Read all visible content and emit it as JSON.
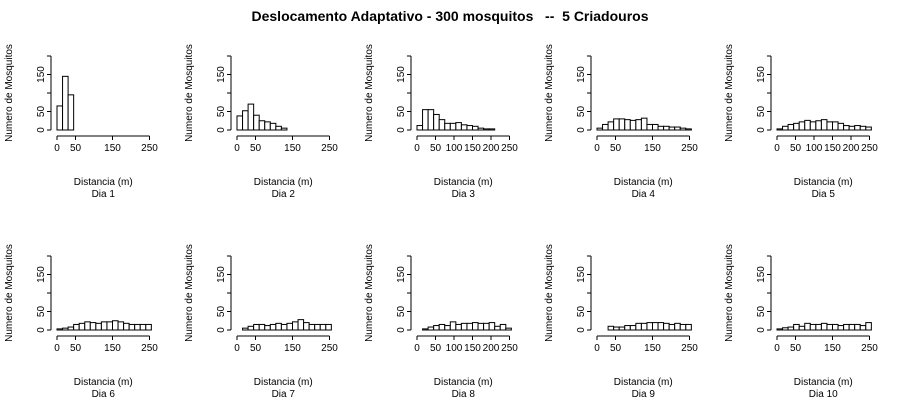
{
  "title": "Deslocamento Adaptativo - 300 mosquitos   --  5 Criadouros",
  "chart_data": [
    {
      "type": "bar",
      "title": "",
      "subtitle": "Dia 1",
      "xlabel": "Distancia (m)",
      "ylabel": "Numero de Mosquitos",
      "xlim": [
        0,
        250
      ],
      "ylim": [
        0,
        200
      ],
      "xticks": [
        0,
        50,
        150,
        250
      ],
      "yticks": [
        0,
        50,
        150
      ],
      "bin_edges": [
        0,
        15,
        30,
        45,
        60,
        75,
        90,
        105,
        120,
        135,
        150,
        165,
        180,
        195,
        210,
        225,
        240,
        255
      ],
      "values": [
        65,
        145,
        95,
        0,
        0,
        0,
        0,
        0,
        0,
        0,
        0,
        0,
        0,
        0,
        0,
        0,
        0
      ]
    },
    {
      "type": "bar",
      "title": "",
      "subtitle": "Dia 2",
      "xlabel": "Distancia (m)",
      "ylabel": "Numero de Mosquitos",
      "xlim": [
        0,
        250
      ],
      "ylim": [
        0,
        200
      ],
      "xticks": [
        0,
        50,
        150,
        250
      ],
      "yticks": [
        0,
        50,
        150
      ],
      "bin_edges": [
        0,
        15,
        30,
        45,
        60,
        75,
        90,
        105,
        120,
        135,
        150,
        165,
        180,
        195,
        210,
        225,
        240,
        255
      ],
      "values": [
        38,
        52,
        70,
        40,
        25,
        22,
        18,
        10,
        5,
        0,
        0,
        0,
        0,
        0,
        0,
        0,
        0
      ]
    },
    {
      "type": "bar",
      "title": "",
      "subtitle": "Dia 3",
      "xlabel": "Distancia (m)",
      "ylabel": "Numero de Mosquitos",
      "xlim": [
        0,
        250
      ],
      "ylim": [
        0,
        200
      ],
      "xticks": [
        0,
        50,
        100,
        150,
        200,
        250
      ],
      "yticks": [
        0,
        50,
        150
      ],
      "bin_edges": [
        0,
        15,
        30,
        45,
        60,
        75,
        90,
        105,
        120,
        135,
        150,
        165,
        180,
        195,
        210,
        225,
        240,
        255
      ],
      "values": [
        12,
        55,
        55,
        42,
        28,
        18,
        18,
        20,
        14,
        12,
        10,
        5,
        3,
        3,
        0,
        0,
        0
      ]
    },
    {
      "type": "bar",
      "title": "",
      "subtitle": "Dia 4",
      "xlabel": "Distancia (m)",
      "ylabel": "Numero de Mosquitos",
      "xlim": [
        0,
        250
      ],
      "ylim": [
        0,
        200
      ],
      "xticks": [
        0,
        50,
        150,
        250
      ],
      "yticks": [
        0,
        50,
        150
      ],
      "bin_edges": [
        0,
        15,
        30,
        45,
        60,
        75,
        90,
        105,
        120,
        135,
        150,
        165,
        180,
        195,
        210,
        225,
        240,
        255
      ],
      "values": [
        5,
        15,
        22,
        30,
        30,
        28,
        26,
        28,
        32,
        15,
        15,
        10,
        10,
        8,
        8,
        5,
        3
      ]
    },
    {
      "type": "bar",
      "title": "",
      "subtitle": "Dia 5",
      "xlabel": "Distancia (m)",
      "ylabel": "Numero de Mosquitos",
      "xlim": [
        0,
        250
      ],
      "ylim": [
        0,
        200
      ],
      "xticks": [
        0,
        50,
        100,
        150,
        200,
        250
      ],
      "yticks": [
        0,
        50,
        150
      ],
      "bin_edges": [
        0,
        15,
        30,
        45,
        60,
        75,
        90,
        105,
        120,
        135,
        150,
        165,
        180,
        195,
        210,
        225,
        240,
        255
      ],
      "values": [
        3,
        10,
        15,
        18,
        22,
        26,
        22,
        25,
        28,
        22,
        22,
        18,
        12,
        10,
        12,
        10,
        8
      ]
    },
    {
      "type": "bar",
      "title": "",
      "subtitle": "Dia 6",
      "xlabel": "Distancia (m)",
      "ylabel": "Numero de Mosquitos",
      "xlim": [
        0,
        250
      ],
      "ylim": [
        0,
        200
      ],
      "xticks": [
        0,
        50,
        150,
        250
      ],
      "yticks": [
        0,
        50,
        150
      ],
      "bin_edges": [
        0,
        15,
        30,
        45,
        60,
        75,
        90,
        105,
        120,
        135,
        150,
        165,
        180,
        195,
        210,
        225,
        240,
        255
      ],
      "values": [
        3,
        5,
        8,
        15,
        18,
        22,
        20,
        18,
        22,
        22,
        25,
        22,
        18,
        15,
        15,
        15,
        15
      ]
    },
    {
      "type": "bar",
      "title": "",
      "subtitle": "Dia 7",
      "xlabel": "Distancia (m)",
      "ylabel": "Numero de Mosquitos",
      "xlim": [
        0,
        250
      ],
      "ylim": [
        0,
        200
      ],
      "xticks": [
        0,
        50,
        150,
        250
      ],
      "yticks": [
        0,
        50,
        150
      ],
      "bin_edges": [
        0,
        15,
        30,
        45,
        60,
        75,
        90,
        105,
        120,
        135,
        150,
        165,
        180,
        195,
        210,
        225,
        240,
        255
      ],
      "values": [
        0,
        5,
        10,
        15,
        15,
        12,
        15,
        18,
        15,
        18,
        22,
        28,
        20,
        15,
        15,
        15,
        15
      ]
    },
    {
      "type": "bar",
      "title": "",
      "subtitle": "Dia 8",
      "xlabel": "Distancia (m)",
      "ylabel": "Numero de Mosquitos",
      "xlim": [
        0,
        250
      ],
      "ylim": [
        0,
        200
      ],
      "xticks": [
        0,
        50,
        100,
        150,
        200,
        250
      ],
      "yticks": [
        0,
        50,
        150
      ],
      "bin_edges": [
        0,
        15,
        30,
        45,
        60,
        75,
        90,
        105,
        120,
        135,
        150,
        165,
        180,
        195,
        210,
        225,
        240,
        255
      ],
      "values": [
        0,
        3,
        8,
        12,
        15,
        12,
        22,
        15,
        18,
        18,
        20,
        18,
        18,
        20,
        10,
        15,
        5
      ]
    },
    {
      "type": "bar",
      "title": "",
      "subtitle": "Dia 9",
      "xlabel": "Distancia (m)",
      "ylabel": "Numero de Mosquitos",
      "xlim": [
        0,
        250
      ],
      "ylim": [
        0,
        200
      ],
      "xticks": [
        0,
        50,
        150,
        250
      ],
      "yticks": [
        0,
        50,
        150
      ],
      "bin_edges": [
        0,
        15,
        30,
        45,
        60,
        75,
        90,
        105,
        120,
        135,
        150,
        165,
        180,
        195,
        210,
        225,
        240,
        255
      ],
      "values": [
        0,
        0,
        10,
        8,
        8,
        12,
        12,
        18,
        18,
        20,
        20,
        20,
        18,
        15,
        18,
        15,
        15
      ]
    },
    {
      "type": "bar",
      "title": "",
      "subtitle": "Dia 10",
      "xlabel": "Distancia (m)",
      "ylabel": "Numero de Mosquitos",
      "xlim": [
        0,
        250
      ],
      "ylim": [
        0,
        200
      ],
      "xticks": [
        0,
        50,
        150,
        250
      ],
      "yticks": [
        0,
        50,
        150
      ],
      "bin_edges": [
        0,
        15,
        30,
        45,
        60,
        75,
        90,
        105,
        120,
        135,
        150,
        165,
        180,
        195,
        210,
        225,
        240,
        255
      ],
      "values": [
        3,
        6,
        8,
        15,
        10,
        18,
        15,
        15,
        18,
        15,
        15,
        12,
        15,
        15,
        15,
        12,
        20
      ]
    }
  ]
}
